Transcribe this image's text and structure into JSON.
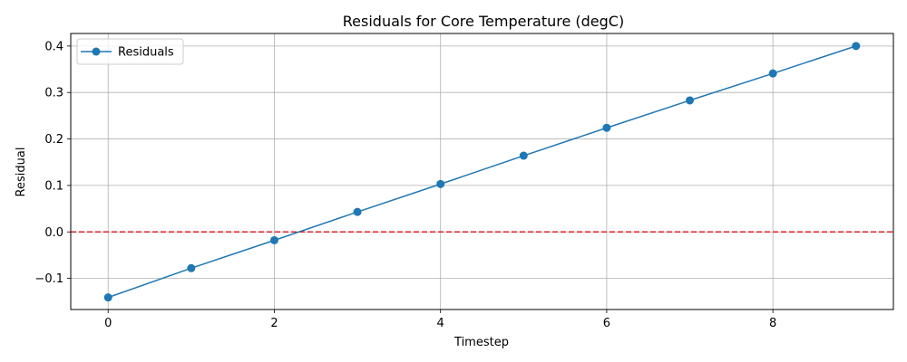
{
  "chart_data": {
    "type": "line",
    "title": "Residuals for Core Temperature (degC)",
    "xlabel": "Timestep",
    "ylabel": "Residual",
    "xlim": [
      -0.45,
      9.45
    ],
    "ylim": [
      -0.167,
      0.427
    ],
    "x_ticks": [
      0,
      2,
      4,
      6,
      8
    ],
    "x_tick_labels": [
      "0",
      "2",
      "4",
      "6",
      "8"
    ],
    "y_ticks": [
      -0.1,
      0.0,
      0.1,
      0.2,
      0.3,
      0.4
    ],
    "y_tick_labels": [
      "−0.1",
      "0.0",
      "0.1",
      "0.2",
      "0.3",
      "0.4"
    ],
    "grid": true,
    "legend_position": "top-left",
    "reference_line": {
      "y": 0,
      "color": "#d62728",
      "style": "dashed"
    },
    "series": [
      {
        "name": "Residuals",
        "color": "#1f77b4",
        "marker": "circle",
        "x": [
          0,
          1,
          2,
          3,
          4,
          5,
          6,
          7,
          8,
          9
        ],
        "y": [
          -0.141,
          -0.078,
          -0.018,
          0.043,
          0.103,
          0.164,
          0.224,
          0.283,
          0.341,
          0.4
        ]
      }
    ]
  }
}
